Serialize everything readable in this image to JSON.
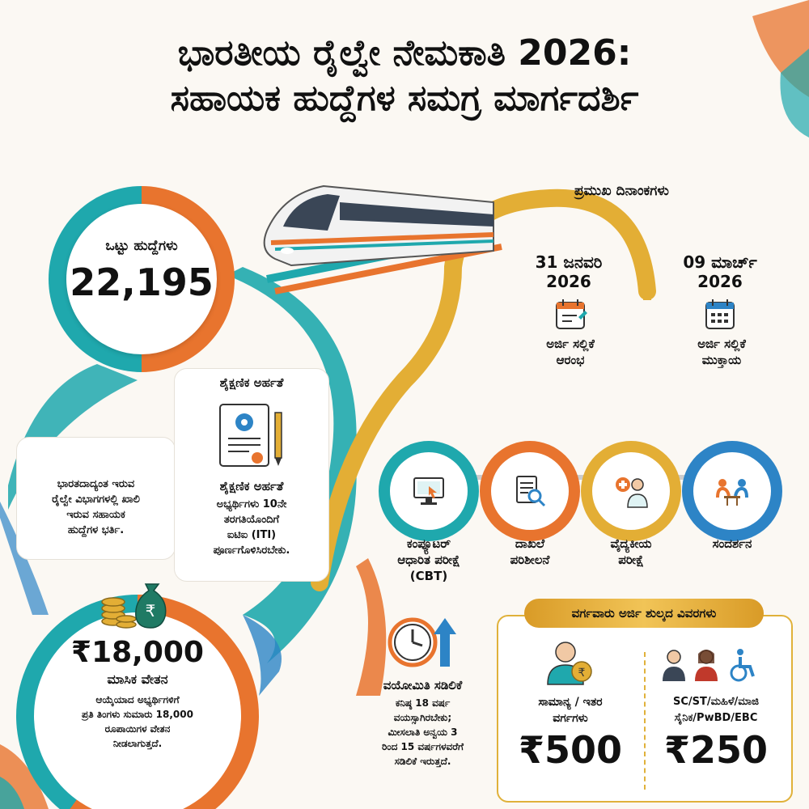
{
  "title": {
    "line1": "ಭಾರತೀಯ ರೈಲ್ವೇ ನೇಮಕಾತಿ 2026:",
    "line2": "ಸಹಾಯಕ ಹುದ್ದೆಗಳ ಸಮಗ್ರ ಮಾರ್ಗದರ್ಶಿ"
  },
  "total_posts": {
    "label": "ಒಟ್ಟು ಹುದ್ದೆಗಳು",
    "value": "22,195"
  },
  "key_dates": {
    "heading": "ಪ್ರಮುಖ ದಿನಾಂಕಗಳು",
    "items": [
      {
        "date": "31 ಜನವರಿ",
        "year": "2026",
        "label_line1": "ಅರ್ಜಿ ಸಲ್ಲಿಕೆ",
        "label_line2": "ಆರಂಭ",
        "icon": "calendar-edit-icon"
      },
      {
        "date": "09 ಮಾರ್ಚ್",
        "year": "2026",
        "label_line1": "ಅರ್ಜಿ ಸಲ್ಲಿಕೆ",
        "label_line2": "ಮುಕ್ತಾಯ",
        "icon": "calendar-grid-icon"
      }
    ]
  },
  "description": {
    "line1": "ಭಾರತದಾದ್ಯಂತ ಇರುವ",
    "line2": "ರೈಲ್ವೇ ವಿಭಾಗಗಳಲ್ಲಿ ಖಾಲಿ",
    "line3": "ಇರುವ ಸಹಾಯಕ",
    "line4": "ಹುದ್ದೆಗಳ ಭರ್ತಿ."
  },
  "education": {
    "heading": "ಶೈಕ್ಷಣಿಕ ಅರ್ಹತೆ",
    "subheading": "ಶೈಕ್ಷಣಿಕ ಅರ್ಹತೆ",
    "line1": "ಅಭ್ಯರ್ಥಿಗಳು 10ನೇ",
    "line2": "ತರಗತಿಯೊಂದಿಗೆ",
    "line3": "ಐಟಿಐ (ITI)",
    "line4": "ಪೂರ್ಣಗೊಳಿಸಿರಬೇಕು."
  },
  "selection_steps": [
    {
      "line1": "ಕಂಪ್ಯೂಟರ್",
      "line2": "ಆಧಾರಿತ ಪರೀಕ್ಷೆ",
      "line3": "(CBT)",
      "color": "#1fa8ad",
      "icon": "computer-test-icon"
    },
    {
      "line1": "ದಾಖಲೆ",
      "line2": "ಪರಿಶೀಲನೆ",
      "line3": "",
      "color": "#e8742e",
      "icon": "document-search-icon"
    },
    {
      "line1": "ವೈದ್ಯಕೀಯ",
      "line2": "ಪರೀಕ್ಷೆ",
      "line3": "",
      "color": "#e3ae35",
      "icon": "medical-doctor-icon"
    },
    {
      "line1": "ಸಂದರ್ಶನ",
      "line2": "",
      "line3": "",
      "color": "#2d84c6",
      "icon": "interview-icon"
    }
  ],
  "salary": {
    "amount": "₹18,000",
    "label": "ಮಾಸಿಕ ವೇತನ",
    "line1": "ಆಯ್ಕೆಯಾದ ಅಭ್ಯರ್ಥಿಗಳಿಗೆ",
    "line2": "ಪ್ರತಿ ತಿಂಗಳು ಸುಮಾರು 18,000",
    "line3": "ರೂಪಾಯಿಗಳ ವೇತನ",
    "line4": "ನೀಡಲಾಗುತ್ತದೆ."
  },
  "age": {
    "heading": "ವಯೋಮಿತಿ ಸಡಿಲಿಕೆ",
    "line1": "ಕನಿಷ್ಠ 18 ವರ್ಷ",
    "line2": "ವಯಸ್ಸಾಗಿರಬೇಕು;",
    "line3": "ಮೀಸಲಾತಿ ಅನ್ವಯ 3",
    "line4": "ರಿಂದ 15 ವರ್ಷಗಳವರೆಗೆ",
    "line5": "ಸಡಿಲಿಕೆ ಇರುತ್ತದೆ."
  },
  "fees": {
    "heading": "ವರ್ಗವಾರು ಅರ್ಜಿ ಶುಲ್ಕದ ವಿವರಗಳು",
    "general": {
      "line1": "ಸಾಮಾನ್ಯ / ಇತರ",
      "line2": "ವರ್ಗಗಳು",
      "amount": "₹500"
    },
    "reserved": {
      "line1": "SC/ST/ಮಹಿಳೆ/ಮಾಜಿ",
      "line2": "ಸೈನಿಕ/PwBD/EBC",
      "amount": "₹250"
    }
  },
  "colors": {
    "orange": "#e8742e",
    "teal": "#1fa8ad",
    "gold": "#e3ae35",
    "blue": "#2d84c6"
  }
}
